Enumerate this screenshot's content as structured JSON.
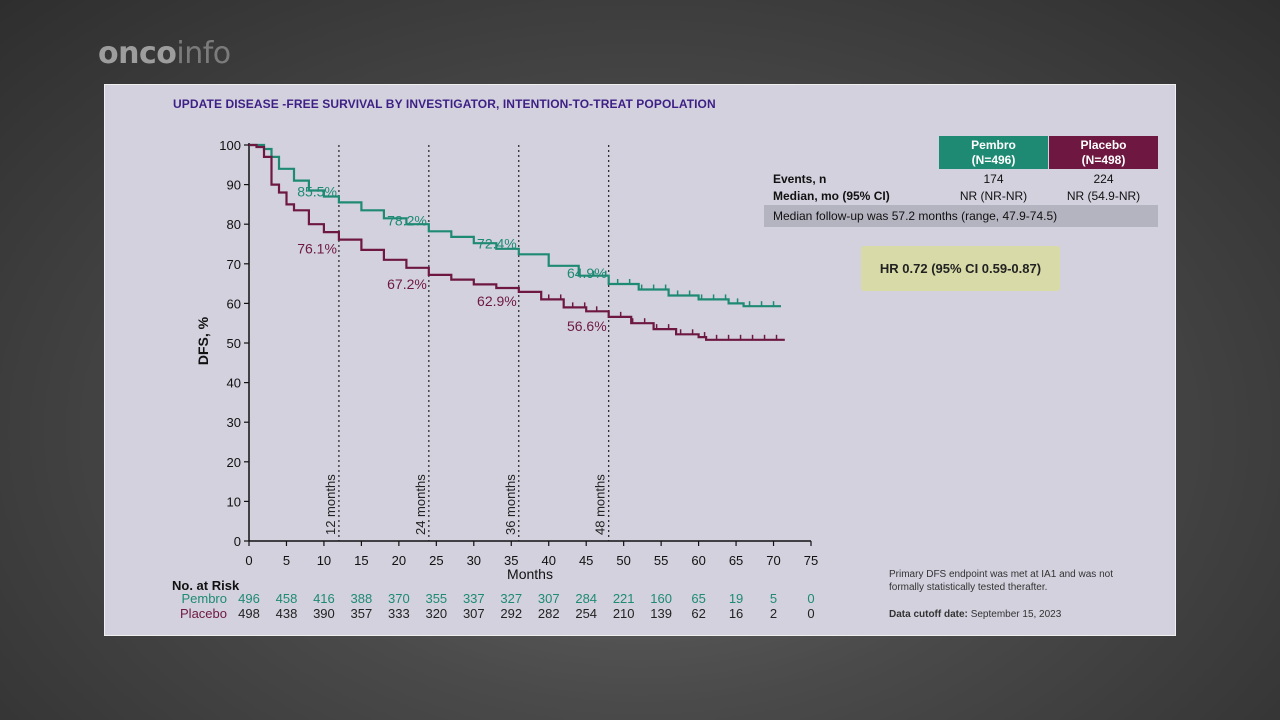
{
  "logo": {
    "bold": "onco",
    "thin": "info"
  },
  "slide": {
    "title": "UPDATE DISEASE -FREE SURVIVAL BY INVESTIGATOR, INTENTION-TO-TREAT POPOLATION"
  },
  "table": {
    "pembro_header": "Pembro\n(N=496)",
    "placebo_header": "Placebo\n(N=498)",
    "rows": [
      {
        "label": "Events, n",
        "pembro": "174",
        "placebo": "224"
      },
      {
        "label": "Median, mo (95% CI)",
        "pembro": "NR (NR-NR)",
        "placebo": "NR (54.9-NR)"
      }
    ],
    "followup": "Median follow-up was 57.2 months (range, 47.9-74.5)"
  },
  "hr": "HR 0.72 (95% CI 0.59-0.87)",
  "footnote": "Primary DFS endpoint was met at IA1 and was not formally statistically tested therafter.",
  "cutoff": {
    "label": "Data cutoff date:",
    "value": "September 15, 2023"
  },
  "colors": {
    "pembro": "#1e8a74",
    "placebo": "#6e1841",
    "title": "#3d1f86"
  },
  "chart_data": {
    "type": "line",
    "xlabel": "Months",
    "ylabel": "DFS, %",
    "xlim": [
      0,
      75
    ],
    "ylim": [
      0,
      100
    ],
    "xticks": [
      0,
      5,
      10,
      15,
      20,
      25,
      30,
      35,
      40,
      45,
      50,
      55,
      60,
      65,
      70,
      75
    ],
    "yticks": [
      0,
      10,
      20,
      30,
      40,
      50,
      60,
      70,
      80,
      90,
      100
    ],
    "grid": false,
    "landmarks": [
      {
        "x": 12,
        "label": "12 months"
      },
      {
        "x": 24,
        "label": "24 months"
      },
      {
        "x": 36,
        "label": "36 months"
      },
      {
        "x": 48,
        "label": "48 months"
      }
    ],
    "series": [
      {
        "name": "Pembro",
        "color": "#1e8a74",
        "points": [
          [
            0,
            100
          ],
          [
            1,
            100
          ],
          [
            2,
            99
          ],
          [
            3,
            97
          ],
          [
            4,
            94
          ],
          [
            6,
            91
          ],
          [
            8,
            88.5
          ],
          [
            10,
            87
          ],
          [
            12,
            85.5
          ],
          [
            15,
            83.5
          ],
          [
            18,
            81.5
          ],
          [
            21,
            80
          ],
          [
            24,
            78.2
          ],
          [
            27,
            76.8
          ],
          [
            30,
            75.2
          ],
          [
            33,
            73.8
          ],
          [
            36,
            72.4
          ],
          [
            40,
            69.5
          ],
          [
            44,
            67
          ],
          [
            48,
            64.9
          ],
          [
            52,
            63.5
          ],
          [
            56,
            62
          ],
          [
            60,
            61
          ],
          [
            64,
            60
          ],
          [
            66,
            59.3
          ],
          [
            71,
            59.3
          ]
        ],
        "annotations": [
          {
            "x": 12,
            "y": 85.5,
            "text": "85.5%"
          },
          {
            "x": 24,
            "y": 78.2,
            "text": "78.2%"
          },
          {
            "x": 36,
            "y": 72.4,
            "text": "72.4%"
          },
          {
            "x": 48,
            "y": 64.9,
            "text": "64.9%"
          }
        ]
      },
      {
        "name": "Placebo",
        "color": "#6e1841",
        "points": [
          [
            0,
            100
          ],
          [
            1,
            99.5
          ],
          [
            2,
            97
          ],
          [
            3,
            90
          ],
          [
            4,
            88
          ],
          [
            5,
            85
          ],
          [
            6,
            83.5
          ],
          [
            8,
            80
          ],
          [
            10,
            78
          ],
          [
            12,
            76.1
          ],
          [
            15,
            73.5
          ],
          [
            18,
            71
          ],
          [
            21,
            69
          ],
          [
            24,
            67.2
          ],
          [
            27,
            66
          ],
          [
            30,
            64.8
          ],
          [
            33,
            63.9
          ],
          [
            36,
            62.9
          ],
          [
            39,
            61
          ],
          [
            42,
            59
          ],
          [
            45,
            58
          ],
          [
            48,
            56.6
          ],
          [
            51,
            55
          ],
          [
            54,
            53.5
          ],
          [
            57,
            52.2
          ],
          [
            60,
            51.5
          ],
          [
            61,
            50.8
          ],
          [
            71.5,
            50.8
          ]
        ],
        "annotations": [
          {
            "x": 12,
            "y": 76.1,
            "text": "76.1%"
          },
          {
            "x": 24,
            "y": 67.2,
            "text": "67.2%"
          },
          {
            "x": 36,
            "y": 62.9,
            "text": "62.9%"
          },
          {
            "x": 48,
            "y": 56.6,
            "text": "56.6%"
          }
        ]
      }
    ],
    "risk_table": {
      "title": "No. at Risk",
      "rows": [
        {
          "name": "Pembro",
          "values": [
            496,
            458,
            416,
            388,
            370,
            355,
            337,
            327,
            307,
            284,
            221,
            160,
            65,
            19,
            5,
            0
          ]
        },
        {
          "name": "Placebo",
          "values": [
            498,
            438,
            390,
            357,
            333,
            320,
            307,
            292,
            282,
            254,
            210,
            139,
            62,
            16,
            2,
            0
          ]
        }
      ]
    }
  }
}
